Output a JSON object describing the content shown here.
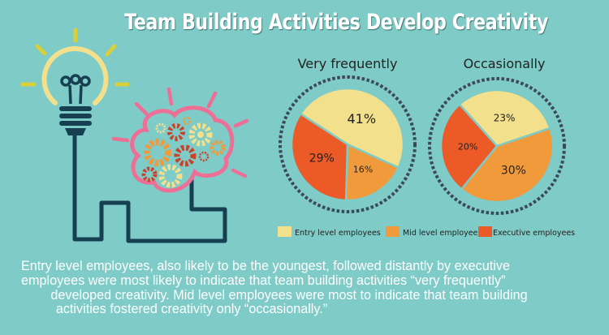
{
  "title": "Team Building Activities Develop Creativity",
  "chart_data": [
    {
      "type": "pie",
      "title": "Very frequently",
      "categories": [
        "Entry level employees",
        "Mid level employees",
        "Executive employees"
      ],
      "values": [
        41,
        16,
        29
      ],
      "labels": [
        "41%",
        "16%",
        "29%"
      ]
    },
    {
      "type": "pie",
      "title": "Occasionally",
      "categories": [
        "Entry level employees",
        "Mid level employees",
        "Executive employees"
      ],
      "values": [
        23,
        30,
        20
      ],
      "labels": [
        "23%",
        "30%",
        "20%"
      ]
    }
  ],
  "legend": {
    "placement": "bottom",
    "items": [
      "Entry level employees",
      "Mid level employees",
      "Executive employees"
    ]
  },
  "colors": {
    "background": "#7fcbc7",
    "entry": "#f3e08c",
    "mid": "#f19a3b",
    "executive": "#ec5a27",
    "ring": "#3c4a55"
  },
  "caption": {
    "lines": [
      "Entry level employees, also likely to be the youngest, followed distantly by executive",
      "employees were most likely to indicate that team building activities “very frequently”",
      "developed creativity.  Mid level employees were most to indicate that team building",
      "activities fostered creativity only “occasionally.”"
    ]
  },
  "illustration": {
    "icons": [
      "lightbulb-icon",
      "brain-gears-icon"
    ]
  }
}
